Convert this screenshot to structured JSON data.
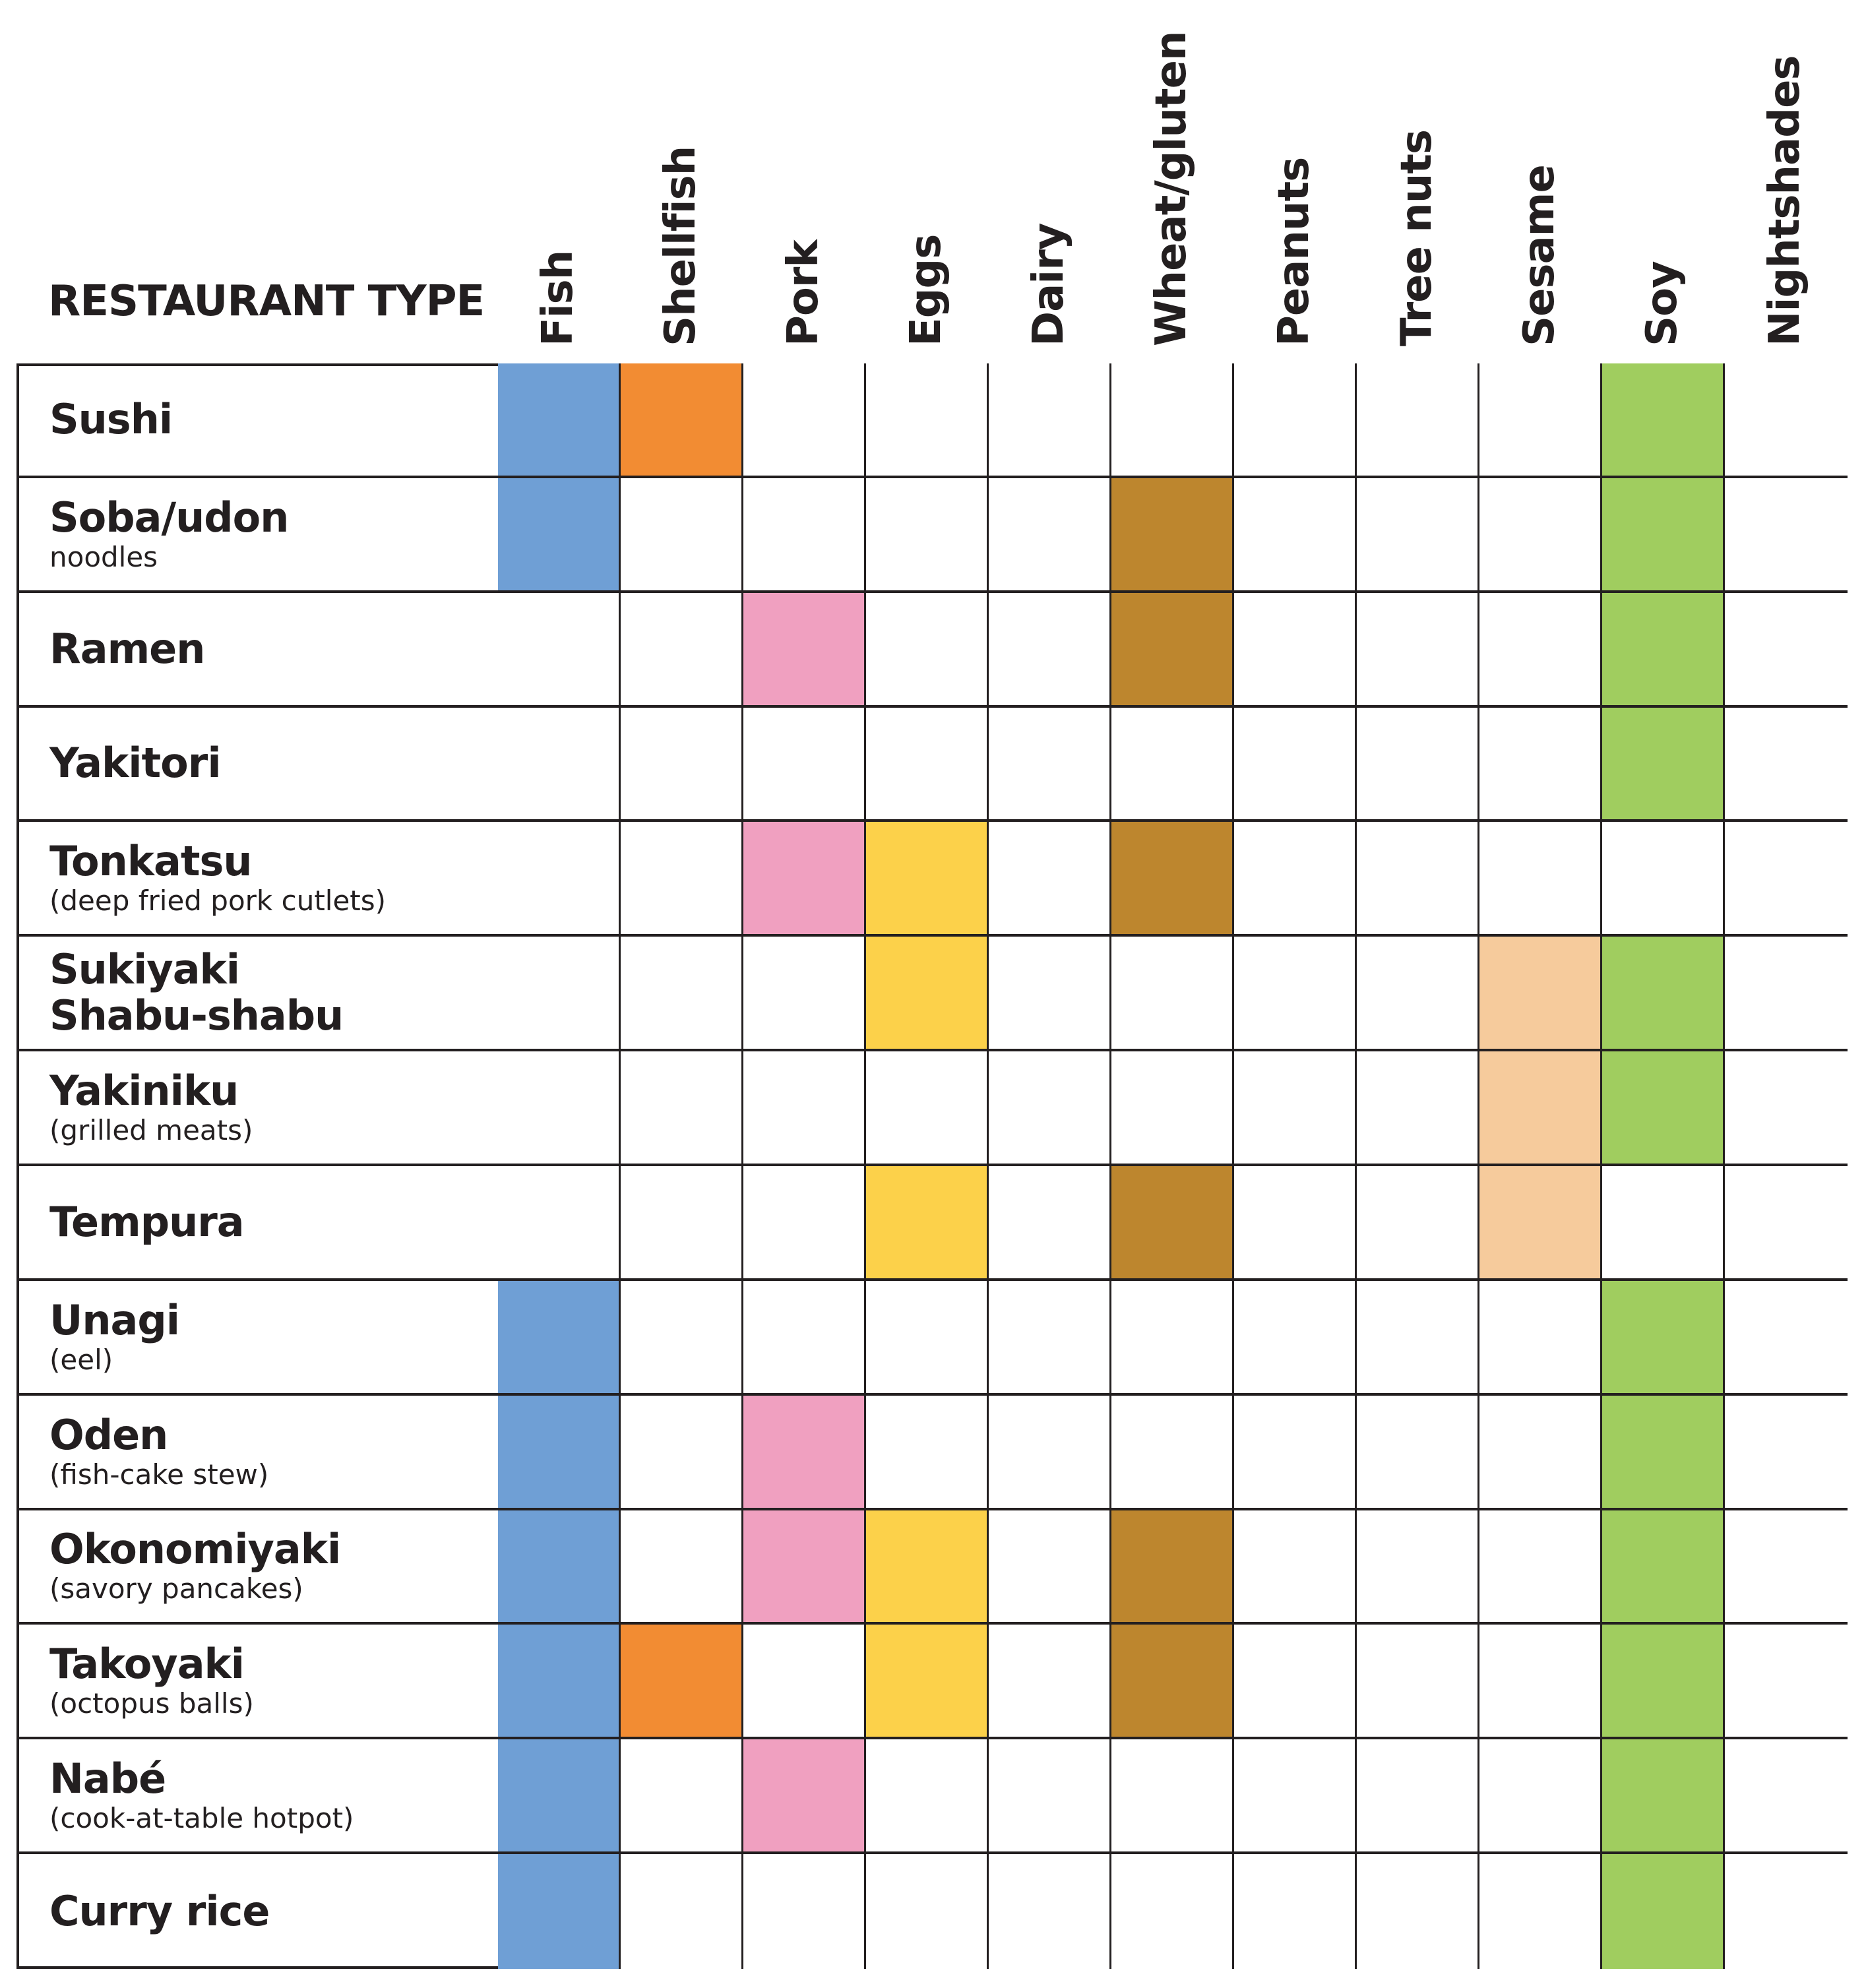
{
  "chart_data": {
    "type": "table",
    "row_header": "RESTAURANT TYPE",
    "columns": [
      "Fish",
      "Shellfish",
      "Pork",
      "Eggs",
      "Dairy",
      "Wheat/gluten",
      "Peanuts",
      "Tree nuts",
      "Sesame",
      "Soy",
      "Nightshades"
    ],
    "column_colors": [
      "#6f9fd5",
      "#f28c33",
      "#f0a0c0",
      "#fcd14a",
      "#ffffff",
      "#bd862e",
      "#ffffff",
      "#ffffff",
      "#f6cb9c",
      "#a0cd5f",
      "#ffffff"
    ],
    "rows": [
      {
        "name": "Sushi",
        "sub": "",
        "flags": [
          1,
          1,
          0,
          0,
          0,
          0,
          0,
          0,
          0,
          1,
          0
        ]
      },
      {
        "name": "Soba/udon",
        "sub": "noodles",
        "flags": [
          1,
          0,
          0,
          0,
          0,
          1,
          0,
          0,
          0,
          1,
          0
        ]
      },
      {
        "name": "Ramen",
        "sub": "",
        "flags": [
          0,
          0,
          1,
          0,
          0,
          1,
          0,
          0,
          0,
          1,
          0
        ]
      },
      {
        "name": "Yakitori",
        "sub": "",
        "flags": [
          0,
          0,
          0,
          0,
          0,
          0,
          0,
          0,
          0,
          1,
          0
        ]
      },
      {
        "name": "Tonkatsu",
        "sub": "(deep fried pork cutlets)",
        "flags": [
          0,
          0,
          1,
          1,
          0,
          1,
          0,
          0,
          0,
          0,
          0
        ]
      },
      {
        "name": "Sukiyaki",
        "name2": "Shabu-shabu",
        "sub": "",
        "flags": [
          0,
          0,
          0,
          1,
          0,
          0,
          0,
          0,
          1,
          1,
          0
        ]
      },
      {
        "name": "Yakiniku",
        "sub": "(grilled meats)",
        "flags": [
          0,
          0,
          0,
          0,
          0,
          0,
          0,
          0,
          1,
          1,
          0
        ]
      },
      {
        "name": "Tempura",
        "sub": "",
        "flags": [
          0,
          0,
          0,
          1,
          0,
          1,
          0,
          0,
          1,
          0,
          0
        ]
      },
      {
        "name": "Unagi",
        "sub": "(eel)",
        "flags": [
          1,
          0,
          0,
          0,
          0,
          0,
          0,
          0,
          0,
          1,
          0
        ]
      },
      {
        "name": "Oden",
        "sub": "(fish-cake stew)",
        "flags": [
          1,
          0,
          1,
          0,
          0,
          0,
          0,
          0,
          0,
          1,
          0
        ]
      },
      {
        "name": "Okonomiyaki",
        "sub": "(savory pancakes)",
        "flags": [
          1,
          0,
          1,
          1,
          0,
          1,
          0,
          0,
          0,
          1,
          0
        ]
      },
      {
        "name": "Takoyaki",
        "sub": "(octopus balls)",
        "flags": [
          1,
          1,
          0,
          1,
          0,
          1,
          0,
          0,
          0,
          1,
          0
        ]
      },
      {
        "name": "Nabé",
        "sub": "(cook-at-table hotpot)",
        "flags": [
          1,
          0,
          1,
          0,
          0,
          0,
          0,
          0,
          0,
          1,
          0
        ]
      },
      {
        "name": "Curry rice",
        "sub": "",
        "flags": [
          1,
          0,
          0,
          0,
          0,
          0,
          0,
          0,
          0,
          1,
          0
        ]
      }
    ]
  }
}
